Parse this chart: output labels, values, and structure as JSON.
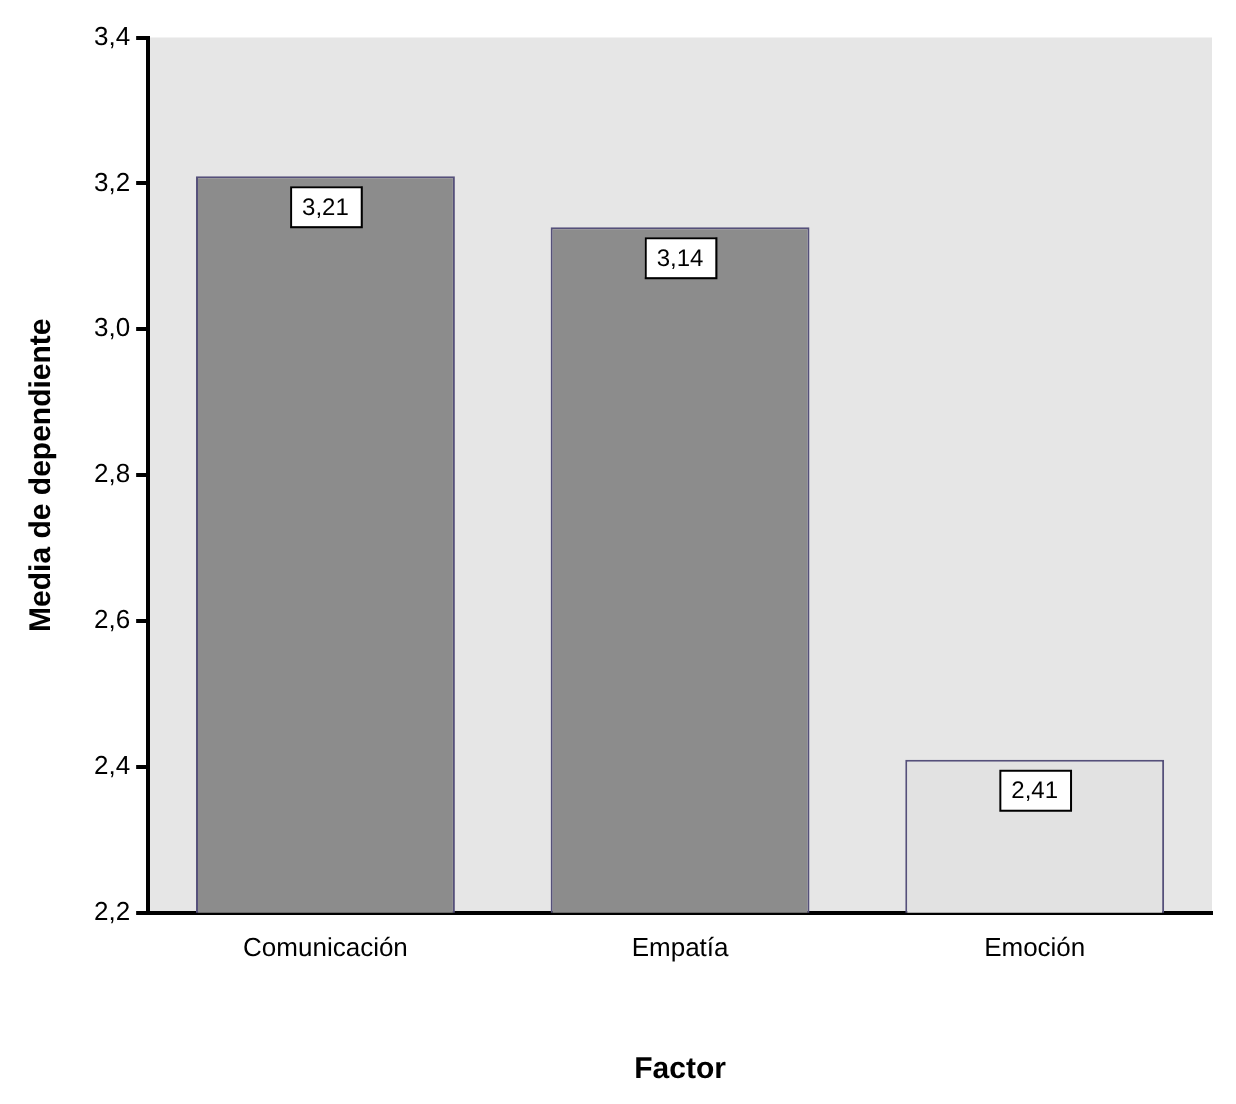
{
  "chart_data": {
    "type": "bar",
    "xlabel": "Factor",
    "ylabel": "Media de dependiente",
    "categories": [
      "Comunicación",
      "Empatía",
      "Emoción"
    ],
    "values": [
      3.21,
      3.14,
      2.41
    ],
    "colors": [
      "#8c8c8c",
      "#8c8c8c",
      "#e2e2e2"
    ],
    "value_labels": [
      "3,21",
      "3,14",
      "2,41"
    ],
    "ylim": [
      2.2,
      3.4
    ],
    "yticks": [
      {
        "value": 2.2,
        "label": "2,2"
      },
      {
        "value": 2.4,
        "label": "2,4"
      },
      {
        "value": 2.6,
        "label": "2,6"
      },
      {
        "value": 2.8,
        "label": "2,8"
      },
      {
        "value": 3.0,
        "label": "3,0"
      },
      {
        "value": 3.2,
        "label": "3,2"
      },
      {
        "value": 3.4,
        "label": "3,4"
      }
    ],
    "grid": false,
    "legend": false
  }
}
